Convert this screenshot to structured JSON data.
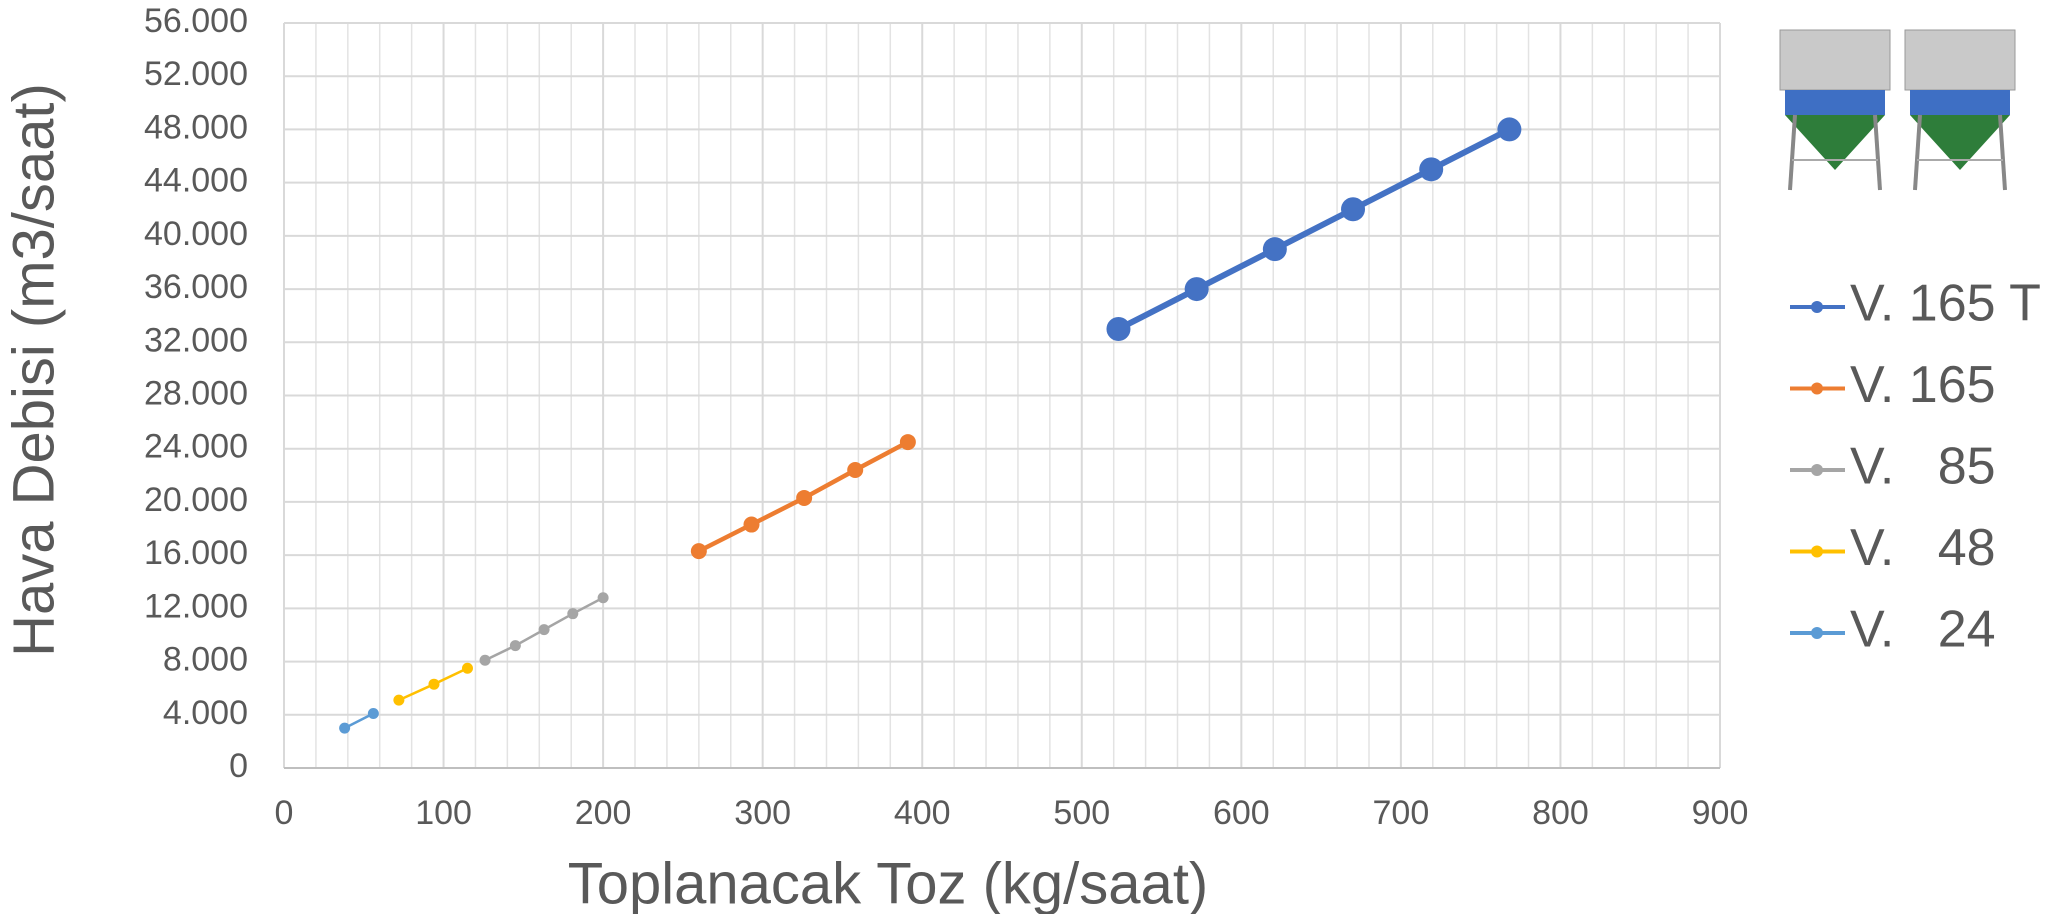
{
  "chart_data": {
    "type": "line",
    "xlabel": "Toplanacak Toz (kg/saat)",
    "ylabel": "Hava Debisi (m3/saat)",
    "xlim": [
      0,
      900
    ],
    "xticks": [
      0,
      100,
      200,
      300,
      400,
      500,
      600,
      700,
      800,
      900
    ],
    "ylim": [
      0,
      56000
    ],
    "yticks": [
      0,
      {
        "value": 4000,
        "label": "4.000"
      },
      {
        "value": 8000,
        "label": "8.000"
      },
      {
        "value": 12000,
        "label": "12.000"
      },
      {
        "value": 16000,
        "label": "16.000"
      },
      {
        "value": 20000,
        "label": "20.000"
      },
      {
        "value": 24000,
        "label": "24.000"
      },
      {
        "value": 28000,
        "label": "28.000"
      },
      {
        "value": 32000,
        "label": "32.000"
      },
      {
        "value": 36000,
        "label": "36.000"
      },
      {
        "value": 40000,
        "label": "40.000"
      },
      {
        "value": 44000,
        "label": "44.000"
      },
      {
        "value": 48000,
        "label": "48.000"
      },
      {
        "value": 52000,
        "label": "52.000"
      },
      {
        "value": 56000,
        "label": "56.000"
      }
    ],
    "grid": true,
    "legend": "right",
    "series": [
      {
        "name": "V. 165 T",
        "color": "#4472c4",
        "x": [
          523,
          572,
          621,
          670,
          719,
          768
        ],
        "values": [
          33000,
          36000,
          39000,
          42000,
          45000,
          48000
        ]
      },
      {
        "name": "V. 165",
        "color": "#ed7d31",
        "x": [
          260,
          293,
          326,
          358,
          391
        ],
        "values": [
          16300,
          18300,
          20300,
          22400,
          24500
        ]
      },
      {
        "name": "V.   85",
        "color": "#a5a5a5",
        "x": [
          126,
          145,
          163,
          181,
          200
        ],
        "values": [
          8100,
          9200,
          10400,
          11600,
          12800
        ]
      },
      {
        "name": "V.   48",
        "color": "#ffc000",
        "x": [
          72,
          94,
          115
        ],
        "values": [
          5100,
          6300,
          7500
        ]
      },
      {
        "name": "V.   24",
        "color": "#5b9bd5",
        "x": [
          38,
          56
        ],
        "values": [
          3000,
          4100
        ]
      }
    ]
  }
}
